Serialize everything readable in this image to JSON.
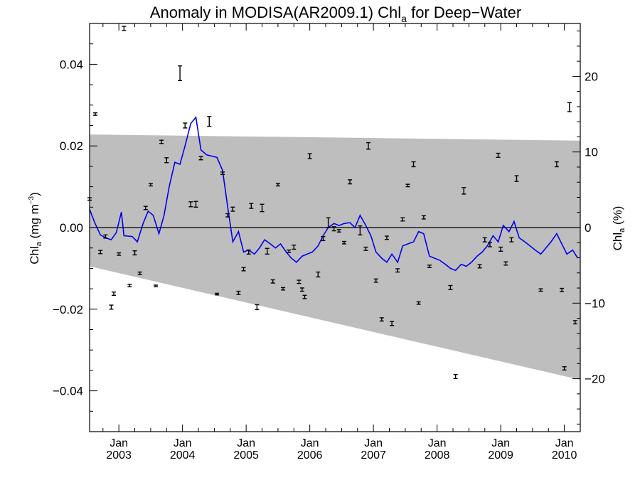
{
  "chart_data": {
    "type": "line",
    "title": "Anomaly in MODISA(AR2009.1) Chl",
    "title_sub": "a",
    "title_suffix": " for Deep−Water",
    "ylabel_left": {
      "main": "Chl",
      "sub": "a",
      "rest": " (mg m",
      "sup": "−3",
      "end": ")"
    },
    "ylabel_right": {
      "main": "Chl",
      "sub": "a",
      "rest": " (%)"
    },
    "x_tick_labels": [
      {
        "month": "Jan",
        "year": "2003",
        "x": 2003.0
      },
      {
        "month": "Jan",
        "year": "2004",
        "x": 2004.0
      },
      {
        "month": "Jan",
        "year": "2005",
        "x": 2005.0
      },
      {
        "month": "Jan",
        "year": "2006",
        "x": 2006.0
      },
      {
        "month": "Jan",
        "year": "2007",
        "x": 2007.0
      },
      {
        "month": "Jan",
        "year": "2008",
        "x": 2008.0
      },
      {
        "month": "Jan",
        "year": "2009",
        "x": 2009.0
      },
      {
        "month": "Jan",
        "year": "2010",
        "x": 2010.0
      }
    ],
    "left_ticks": [
      "0.04",
      "0.02",
      "0.00",
      "−0.02",
      "−0.04"
    ],
    "left_tick_values": [
      0.04,
      0.02,
      0.0,
      -0.02,
      -0.04
    ],
    "right_ticks": [
      "20",
      "10",
      "0",
      "−10",
      "−20"
    ],
    "right_tick_values": [
      20,
      10,
      0,
      -10,
      -20
    ],
    "xlim": [
      2002.54,
      2010.25
    ],
    "ylim_left": [
      -0.05,
      0.05
    ],
    "ylim_right": [
      -27,
      27
    ],
    "band": {
      "upper": [
        [
          2002.54,
          0.0228
        ],
        [
          2010.25,
          0.0213
        ]
      ],
      "lower": [
        [
          2002.54,
          -0.0095
        ],
        [
          2010.25,
          -0.0373
        ]
      ],
      "color": "#bebebe"
    },
    "zero_line": 0,
    "line_color": "#0000ee",
    "series": [
      {
        "type": "line",
        "points": [
          [
            2002.54,
            0.0045
          ],
          [
            2002.62,
            0.0012
          ],
          [
            2002.71,
            -0.0018
          ],
          [
            2002.79,
            -0.0025
          ],
          [
            2002.88,
            -0.003
          ],
          [
            2002.96,
            -0.0012
          ],
          [
            2003.04,
            0.0038
          ],
          [
            2003.08,
            -0.002
          ],
          [
            2003.21,
            -0.0022
          ],
          [
            2003.29,
            -0.0035
          ],
          [
            2003.38,
            0.001
          ],
          [
            2003.46,
            0.004
          ],
          [
            2003.54,
            0.003
          ],
          [
            2003.63,
            -0.0015
          ],
          [
            2003.71,
            0.003
          ],
          [
            2003.79,
            0.01
          ],
          [
            2003.88,
            0.016
          ],
          [
            2003.96,
            0.0155
          ],
          [
            2004.04,
            0.02
          ],
          [
            2004.13,
            0.0255
          ],
          [
            2004.21,
            0.027
          ],
          [
            2004.29,
            0.019
          ],
          [
            2004.38,
            0.0178
          ],
          [
            2004.46,
            0.0175
          ],
          [
            2004.54,
            0.0172
          ],
          [
            2004.63,
            0.014
          ],
          [
            2004.71,
            0.005
          ],
          [
            2004.79,
            -0.0035
          ],
          [
            2004.88,
            -0.001
          ],
          [
            2004.96,
            -0.006
          ],
          [
            2005.04,
            -0.0055
          ],
          [
            2005.13,
            -0.0065
          ],
          [
            2005.21,
            -0.005
          ],
          [
            2005.29,
            -0.003
          ],
          [
            2005.38,
            -0.004
          ],
          [
            2005.46,
            -0.005
          ],
          [
            2005.54,
            -0.004
          ],
          [
            2005.63,
            -0.006
          ],
          [
            2005.71,
            -0.0075
          ],
          [
            2005.79,
            -0.0085
          ],
          [
            2005.88,
            -0.007
          ],
          [
            2005.96,
            -0.0065
          ],
          [
            2006.04,
            -0.006
          ],
          [
            2006.13,
            -0.0045
          ],
          [
            2006.21,
            -0.002
          ],
          [
            2006.29,
            0.0
          ],
          [
            2006.38,
            0.001
          ],
          [
            2006.46,
            0.0005
          ],
          [
            2006.54,
            0.001
          ],
          [
            2006.63,
            0.0012
          ],
          [
            2006.71,
            0.0
          ],
          [
            2006.79,
            0.003
          ],
          [
            2006.88,
            0.0005
          ],
          [
            2006.96,
            -0.002
          ],
          [
            2007.04,
            -0.006
          ],
          [
            2007.13,
            -0.0075
          ],
          [
            2007.21,
            -0.0085
          ],
          [
            2007.29,
            -0.0065
          ],
          [
            2007.38,
            -0.0085
          ],
          [
            2007.46,
            -0.0045
          ],
          [
            2007.54,
            -0.004
          ],
          [
            2007.63,
            -0.0035
          ],
          [
            2007.71,
            -0.001
          ],
          [
            2007.79,
            -0.0015
          ],
          [
            2007.88,
            -0.007
          ],
          [
            2007.96,
            -0.0075
          ],
          [
            2008.04,
            -0.008
          ],
          [
            2008.13,
            -0.009
          ],
          [
            2008.21,
            -0.01
          ],
          [
            2008.29,
            -0.0105
          ],
          [
            2008.38,
            -0.009
          ],
          [
            2008.46,
            -0.0095
          ],
          [
            2008.54,
            -0.0085
          ],
          [
            2008.63,
            -0.007
          ],
          [
            2008.71,
            -0.006
          ],
          [
            2008.79,
            -0.0045
          ],
          [
            2008.88,
            -0.002
          ],
          [
            2008.96,
            -0.0035
          ],
          [
            2009.04,
            0.0005
          ],
          [
            2009.13,
            -0.001
          ],
          [
            2009.21,
            0.0015
          ],
          [
            2009.29,
            -0.0025
          ],
          [
            2009.38,
            -0.0035
          ],
          [
            2009.46,
            -0.0045
          ],
          [
            2009.54,
            -0.0055
          ],
          [
            2009.63,
            -0.0065
          ],
          [
            2009.71,
            -0.005
          ],
          [
            2009.79,
            -0.0035
          ],
          [
            2009.88,
            -0.0015
          ],
          [
            2009.96,
            -0.004
          ],
          [
            2010.04,
            -0.0065
          ],
          [
            2010.13,
            -0.0055
          ],
          [
            2010.21,
            -0.0075
          ]
        ]
      },
      {
        "type": "errorbar_points",
        "points": [
          [
            2002.54,
            0.007,
            0.0003
          ],
          [
            2002.63,
            0.0278,
            0.0003
          ],
          [
            2002.71,
            -0.006,
            0.0004
          ],
          [
            2002.79,
            -0.0022,
            0.0004
          ],
          [
            2002.88,
            -0.0195,
            0.0005
          ],
          [
            2002.92,
            -0.0162,
            0.0004
          ],
          [
            2003.0,
            -0.0065,
            0.0003
          ],
          [
            2003.08,
            0.0488,
            0.0005
          ],
          [
            2003.17,
            -0.0142,
            0.0003
          ],
          [
            2003.25,
            -0.0062,
            0.0005
          ],
          [
            2003.33,
            -0.0112,
            0.0003
          ],
          [
            2003.42,
            0.0048,
            0.0004
          ],
          [
            2003.5,
            0.0105,
            0.0003
          ],
          [
            2003.58,
            -0.0143,
            0.0002
          ],
          [
            2003.67,
            0.021,
            0.0004
          ],
          [
            2003.75,
            0.0165,
            0.0006
          ],
          [
            2003.96,
            0.0378,
            0.0018
          ],
          [
            2004.04,
            0.025,
            0.0006
          ],
          [
            2004.13,
            0.0057,
            0.0006
          ],
          [
            2004.21,
            0.0057,
            0.0007
          ],
          [
            2004.29,
            0.017,
            0.0004
          ],
          [
            2004.42,
            0.026,
            0.0012
          ],
          [
            2004.54,
            -0.0163,
            0.0002
          ],
          [
            2004.63,
            0.0133,
            0.0003
          ],
          [
            2004.71,
            0.003,
            0.0004
          ],
          [
            2004.79,
            0.0045,
            0.0005
          ],
          [
            2004.88,
            -0.016,
            0.0004
          ],
          [
            2004.96,
            -0.0102,
            0.0004
          ],
          [
            2005.04,
            -0.006,
            0.0005
          ],
          [
            2005.08,
            0.0053,
            0.0006
          ],
          [
            2005.17,
            -0.0195,
            0.0006
          ],
          [
            2005.25,
            0.0048,
            0.0009
          ],
          [
            2005.33,
            -0.0058,
            0.0007
          ],
          [
            2005.42,
            -0.0132,
            0.0004
          ],
          [
            2005.5,
            0.0105,
            0.0003
          ],
          [
            2005.58,
            -0.015,
            0.0003
          ],
          [
            2005.67,
            -0.0058,
            0.0003
          ],
          [
            2005.75,
            -0.0048,
            0.0005
          ],
          [
            2005.83,
            -0.0133,
            0.0004
          ],
          [
            2005.88,
            -0.0152,
            0.0004
          ],
          [
            2005.92,
            -0.017,
            0.0004
          ],
          [
            2006.0,
            0.0175,
            0.0006
          ],
          [
            2006.13,
            -0.0115,
            0.0006
          ],
          [
            2006.21,
            -0.0027,
            0.0005
          ],
          [
            2006.29,
            0.0012,
            0.0012
          ],
          [
            2006.38,
            -0.0003,
            0.0005
          ],
          [
            2006.46,
            -0.0008,
            0.0003
          ],
          [
            2006.54,
            -0.0037,
            0.0003
          ],
          [
            2006.63,
            0.0112,
            0.0005
          ],
          [
            2006.79,
            -0.0007,
            0.0011
          ],
          [
            2006.88,
            -0.0052,
            0.0004
          ],
          [
            2006.92,
            0.02,
            0.0008
          ],
          [
            2007.04,
            -0.013,
            0.0004
          ],
          [
            2007.13,
            -0.0225,
            0.0004
          ],
          [
            2007.21,
            -0.0025,
            0.0004
          ],
          [
            2007.29,
            -0.0235,
            0.0005
          ],
          [
            2007.38,
            -0.0105,
            0.0004
          ],
          [
            2007.46,
            0.002,
            0.0004
          ],
          [
            2007.54,
            0.0103,
            0.0003
          ],
          [
            2007.63,
            0.0155,
            0.0006
          ],
          [
            2007.71,
            -0.0185,
            0.0003
          ],
          [
            2007.79,
            0.0025,
            0.0004
          ],
          [
            2007.88,
            -0.0095,
            0.0003
          ],
          [
            2008.29,
            -0.0365,
            0.0005
          ],
          [
            2008.21,
            -0.0147,
            0.0005
          ],
          [
            2008.42,
            0.009,
            0.0008
          ],
          [
            2008.67,
            -0.0095,
            0.0004
          ],
          [
            2008.75,
            -0.003,
            0.0005
          ],
          [
            2008.83,
            -0.0042,
            0.0005
          ],
          [
            2008.96,
            0.0177,
            0.0005
          ],
          [
            2009.0,
            -0.0053,
            0.0005
          ],
          [
            2009.08,
            -0.0088,
            0.0004
          ],
          [
            2009.17,
            -0.003,
            0.0005
          ],
          [
            2009.25,
            0.012,
            0.0007
          ],
          [
            2009.63,
            -0.0153,
            0.0003
          ],
          [
            2009.88,
            0.0155,
            0.0006
          ],
          [
            2009.96,
            -0.0153,
            0.0004
          ],
          [
            2010.0,
            -0.0345,
            0.0004
          ],
          [
            2010.08,
            0.0295,
            0.0011
          ],
          [
            2010.17,
            -0.0232,
            0.0004
          ]
        ]
      }
    ]
  }
}
